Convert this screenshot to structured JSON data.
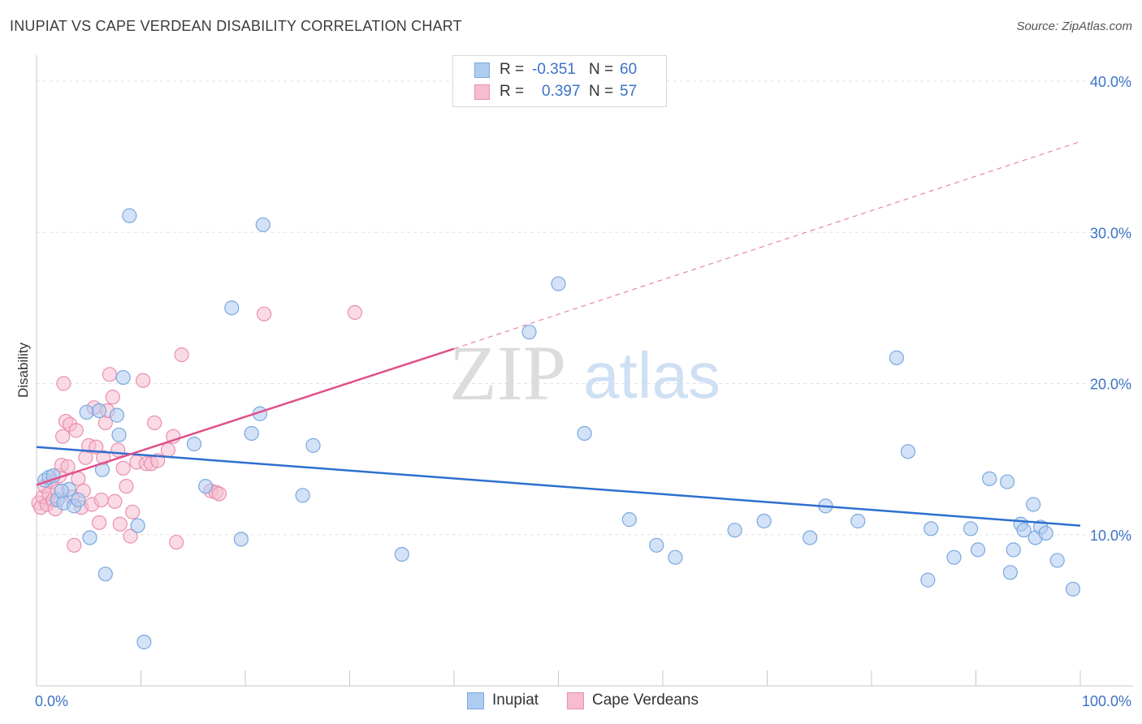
{
  "title": "INUPIAT VS CAPE VERDEAN DISABILITY CORRELATION CHART",
  "source": "Source: ZipAtlas.com",
  "watermark": {
    "zip": "ZIP",
    "atlas": "atlas"
  },
  "colors": {
    "inupiat_fill": "#aecbf0",
    "inupiat_stroke": "#7aa8e0",
    "inupiat_line": "#2e6fd0",
    "cape_fill": "#f6bdd0",
    "cape_stroke": "#ea8fb0",
    "cape_line": "#e0508a",
    "tick_text": "#3c73c6"
  },
  "legend": {
    "rows": [
      {
        "label": "R =",
        "r": "-0.351",
        "n_label": "N =",
        "n": "60"
      },
      {
        "label": "R =",
        "r": "0.397",
        "n_label": "N =",
        "n": "57"
      }
    ]
  },
  "bottom_legend": [
    "Inupiat",
    "Cape Verdeans"
  ],
  "chart_data": {
    "type": "scatter",
    "title": "INUPIAT VS CAPE VERDEAN DISABILITY CORRELATION CHART",
    "xlabel": "",
    "ylabel": "Disability",
    "xlim": [
      0,
      100
    ],
    "ylim": [
      0,
      40
    ],
    "x_tick_labels": [
      "0.0%",
      "100.0%"
    ],
    "y_ticks": [
      10,
      20,
      30,
      40
    ],
    "y_tick_labels": [
      "10.0%",
      "20.0%",
      "30.0%",
      "40.0%"
    ],
    "grid": true,
    "legend_placement": "top-center",
    "series": [
      {
        "name": "Inupiat",
        "points": [
          [
            0.8,
            13.6
          ],
          [
            1.2,
            13.8
          ],
          [
            1.6,
            13.9
          ],
          [
            2.0,
            12.3
          ],
          [
            2.6,
            12.1
          ],
          [
            3.1,
            13.0
          ],
          [
            3.6,
            11.9
          ],
          [
            4.0,
            12.3
          ],
          [
            4.8,
            18.1
          ],
          [
            5.1,
            9.8
          ],
          [
            6.0,
            18.2
          ],
          [
            6.3,
            14.3
          ],
          [
            6.6,
            7.4
          ],
          [
            7.7,
            17.9
          ],
          [
            7.9,
            16.6
          ],
          [
            8.3,
            20.4
          ],
          [
            8.9,
            31.1
          ],
          [
            9.7,
            10.6
          ],
          [
            10.3,
            2.9
          ],
          [
            15.1,
            16.0
          ],
          [
            16.2,
            13.2
          ],
          [
            18.7,
            25.0
          ],
          [
            19.6,
            9.7
          ],
          [
            20.6,
            16.7
          ],
          [
            21.4,
            18.0
          ],
          [
            21.7,
            30.5
          ],
          [
            25.5,
            12.6
          ],
          [
            26.5,
            15.9
          ],
          [
            35.0,
            8.7
          ],
          [
            47.2,
            23.4
          ],
          [
            50.0,
            26.6
          ],
          [
            52.5,
            16.7
          ],
          [
            56.8,
            11.0
          ],
          [
            59.4,
            9.3
          ],
          [
            61.2,
            8.5
          ],
          [
            66.9,
            10.3
          ],
          [
            69.7,
            10.9
          ],
          [
            74.1,
            9.8
          ],
          [
            75.6,
            11.9
          ],
          [
            78.7,
            10.9
          ],
          [
            82.4,
            21.7
          ],
          [
            83.5,
            15.5
          ],
          [
            85.4,
            7.0
          ],
          [
            85.7,
            10.4
          ],
          [
            87.9,
            8.5
          ],
          [
            89.5,
            10.4
          ],
          [
            90.2,
            9.0
          ],
          [
            91.3,
            13.7
          ],
          [
            93.0,
            13.5
          ],
          [
            93.3,
            7.5
          ],
          [
            93.6,
            9.0
          ],
          [
            94.3,
            10.7
          ],
          [
            94.6,
            10.3
          ],
          [
            95.5,
            12.0
          ],
          [
            95.7,
            9.8
          ],
          [
            96.2,
            10.5
          ],
          [
            96.7,
            10.1
          ],
          [
            97.8,
            8.3
          ],
          [
            99.3,
            6.4
          ],
          [
            2.4,
            12.9
          ]
        ]
      },
      {
        "name": "Cape Verdeans",
        "points": [
          [
            0.2,
            12.1
          ],
          [
            0.4,
            11.8
          ],
          [
            0.6,
            12.5
          ],
          [
            0.8,
            13.2
          ],
          [
            1.0,
            12.0
          ],
          [
            1.2,
            12.7
          ],
          [
            1.4,
            13.5
          ],
          [
            1.6,
            12.3
          ],
          [
            1.8,
            11.7
          ],
          [
            2.0,
            12.9
          ],
          [
            2.2,
            13.9
          ],
          [
            2.4,
            14.6
          ],
          [
            2.5,
            16.5
          ],
          [
            2.6,
            20.0
          ],
          [
            2.8,
            17.5
          ],
          [
            3.0,
            14.5
          ],
          [
            3.2,
            17.3
          ],
          [
            3.4,
            12.5
          ],
          [
            3.6,
            9.3
          ],
          [
            3.8,
            16.9
          ],
          [
            4.0,
            13.7
          ],
          [
            4.3,
            11.8
          ],
          [
            4.5,
            12.9
          ],
          [
            4.7,
            15.1
          ],
          [
            5.0,
            15.9
          ],
          [
            5.3,
            12.0
          ],
          [
            5.5,
            18.4
          ],
          [
            5.7,
            15.8
          ],
          [
            6.0,
            10.8
          ],
          [
            6.2,
            12.3
          ],
          [
            6.4,
            15.1
          ],
          [
            6.6,
            17.4
          ],
          [
            6.8,
            18.2
          ],
          [
            7.0,
            20.6
          ],
          [
            7.3,
            19.1
          ],
          [
            7.5,
            12.2
          ],
          [
            7.8,
            15.6
          ],
          [
            8.0,
            10.7
          ],
          [
            8.3,
            14.4
          ],
          [
            8.6,
            13.2
          ],
          [
            9.0,
            9.9
          ],
          [
            9.2,
            11.5
          ],
          [
            9.6,
            14.8
          ],
          [
            10.2,
            20.2
          ],
          [
            10.5,
            14.7
          ],
          [
            11.0,
            14.7
          ],
          [
            11.3,
            17.4
          ],
          [
            11.6,
            14.9
          ],
          [
            12.6,
            15.6
          ],
          [
            13.1,
            16.5
          ],
          [
            13.4,
            9.5
          ],
          [
            13.9,
            21.9
          ],
          [
            16.7,
            12.9
          ],
          [
            17.2,
            12.8
          ],
          [
            17.5,
            12.7
          ],
          [
            21.8,
            24.6
          ],
          [
            30.5,
            24.7
          ]
        ]
      }
    ],
    "trendlines": [
      {
        "series": "Inupiat",
        "x": [
          0,
          100
        ],
        "y": [
          15.8,
          10.6
        ],
        "style": "solid"
      },
      {
        "series": "Cape Verdeans",
        "x": [
          0,
          40
        ],
        "y": [
          13.3,
          22.3
        ],
        "style": "solid",
        "extended_to": [
          100,
          36.0
        ],
        "extended_style": "dashed"
      }
    ]
  }
}
